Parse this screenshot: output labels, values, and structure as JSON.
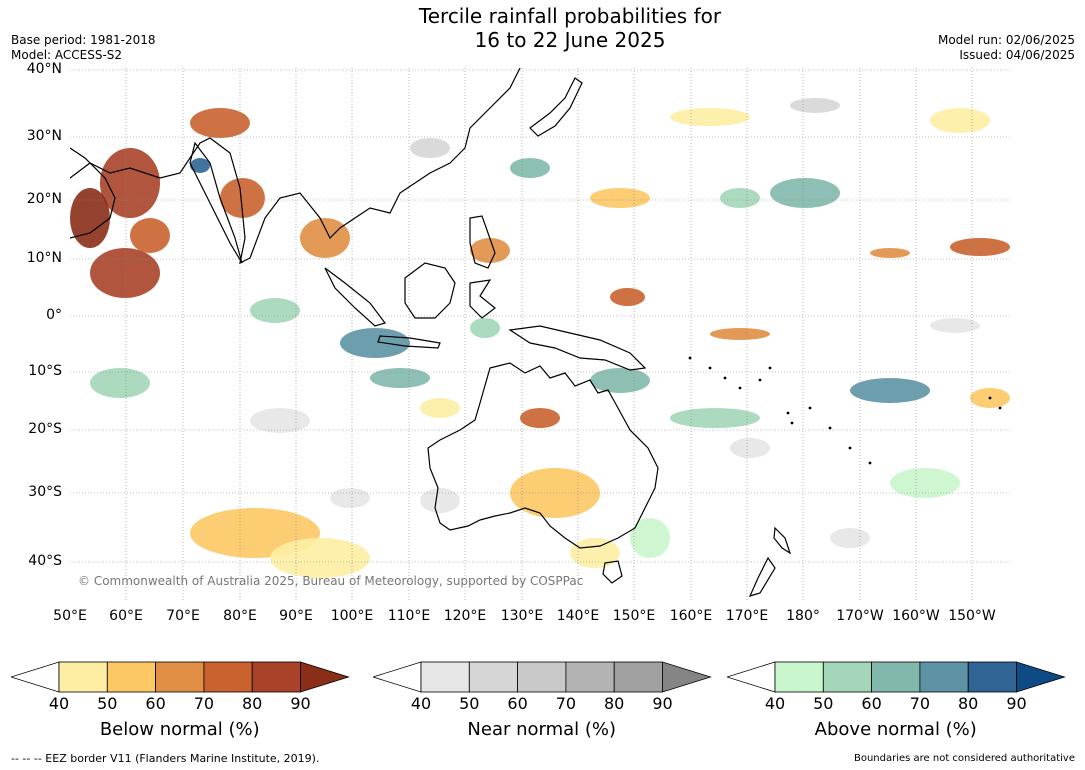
{
  "title_line1": "Tercile rainfall probabilities for",
  "title_line2": "16 to 22 June 2025",
  "base_period": "Base period: 1981-2018",
  "model": "Model: ACCESS-S2",
  "model_run": "Model run: 02/06/2025",
  "issued": "Issued: 04/06/2025",
  "copyright": "© Commonwealth of Australia 2025, Bureau of Meteorology, supported by COSPPac",
  "lat_labels": [
    "40°N",
    "30°N",
    "20°N",
    "10°N",
    "0°",
    "10°S",
    "20°S",
    "30°S",
    "40°S"
  ],
  "lon_labels": [
    "50°E",
    "60°E",
    "70°E",
    "80°E",
    "90°E",
    "100°E",
    "110°E",
    "120°E",
    "130°E",
    "140°E",
    "150°E",
    "160°E",
    "170°E",
    "180°",
    "170°W",
    "160°W",
    "150°W"
  ],
  "legends": [
    {
      "title": "Below normal (%)",
      "ticks": [
        "40",
        "50",
        "60",
        "70",
        "80",
        "90"
      ],
      "colors": [
        "#fdeea3",
        "#fcc864",
        "#e08f45",
        "#c9622f",
        "#a8432a",
        "#8a2e17"
      ]
    },
    {
      "title": "Near normal (%)",
      "ticks": [
        "40",
        "50",
        "60",
        "70",
        "80",
        "90"
      ],
      "colors": [
        "#e6e6e6",
        "#d6d6d6",
        "#c8c8c8",
        "#b3b3b3",
        "#a0a0a0",
        "#858585"
      ]
    },
    {
      "title": "Above normal (%)",
      "ticks": [
        "40",
        "50",
        "60",
        "70",
        "80",
        "90"
      ],
      "colors": [
        "#c9f6cc",
        "#a3d6b8",
        "#82b8ac",
        "#5d93a4",
        "#2f6495",
        "#0e4a84"
      ]
    }
  ],
  "eez_note": "--  --  -- EEZ border V11 (Flanders Marine Institute, 2019).",
  "boundaries_note": "Boundaries are not considered authoritative"
}
